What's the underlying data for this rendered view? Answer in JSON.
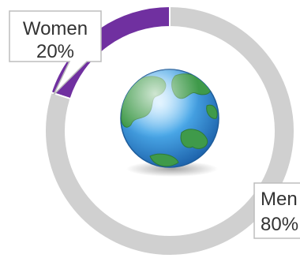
{
  "chart_data": {
    "type": "pie",
    "style": "donut",
    "title": "",
    "slices": [
      {
        "label": "Women",
        "value": 20,
        "value_label": "20%",
        "color": "#7030a0"
      },
      {
        "label": "Men",
        "value": 80,
        "value_label": "80%",
        "color": "#d0d0d0"
      }
    ],
    "center_icon": "globe-icon"
  }
}
